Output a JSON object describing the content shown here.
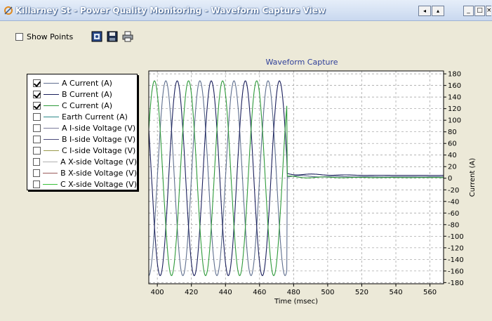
{
  "window": {
    "title": "Killarney St - Power Quality Monitoring - Waveform Capture View",
    "scroll_left": "◂",
    "scroll_right": "▴",
    "minimize": "_",
    "maximize": "□",
    "close": "×"
  },
  "toolbar": {
    "show_points_label": "Show Points",
    "show_points_checked": false,
    "icons": [
      "settings-icon",
      "save-icon",
      "print-icon"
    ]
  },
  "legend": {
    "items": [
      {
        "label": "A Current (A)",
        "checked": true,
        "color": "#5f6f8f"
      },
      {
        "label": "B Current (A)",
        "checked": true,
        "color": "#1a1f5c"
      },
      {
        "label": "C Current (A)",
        "checked": true,
        "color": "#2e9a3a"
      },
      {
        "label": "Earth Current (A)",
        "checked": false,
        "color": "#2e8a8a"
      },
      {
        "label": "A I-side Voltage (V)",
        "checked": false,
        "color": "#7a7a9a"
      },
      {
        "label": "B I-side Voltage (V)",
        "checked": false,
        "color": "#4a4a7a"
      },
      {
        "label": "C I-side Voltage (V)",
        "checked": false,
        "color": "#9a9a4a"
      },
      {
        "label": "A X-side Voltage (V)",
        "checked": false,
        "color": "#b0b0b0"
      },
      {
        "label": "B X-side Voltage (V)",
        "checked": false,
        "color": "#9a5a5a"
      },
      {
        "label": "C X-side Voltage (V)",
        "checked": false,
        "color": "#3ac03a"
      }
    ]
  },
  "chart_data": {
    "type": "line",
    "title": "Waveform Capture",
    "xlabel": "Time (msec)",
    "ylabel": "Current (A)",
    "xlim": [
      395,
      568
    ],
    "ylim": [
      -182,
      185
    ],
    "xticks": [
      400,
      420,
      440,
      460,
      480,
      500,
      520,
      540,
      560
    ],
    "yticks": [
      180,
      160,
      140,
      120,
      100,
      80,
      60,
      40,
      20,
      0,
      -20,
      -40,
      -60,
      -80,
      -100,
      -120,
      -140,
      -160,
      -180
    ],
    "grid": true,
    "fault_clear_time": 476,
    "series": [
      {
        "name": "A Current (A)",
        "color": "#5f6f8f",
        "amplitude": 168,
        "frequency_hz": 50,
        "phase_deg": 0,
        "residual": 4
      },
      {
        "name": "B Current (A)",
        "color": "#1a1f5c",
        "amplitude": 168,
        "frequency_hz": 50,
        "phase_deg": 240,
        "residual": 8
      },
      {
        "name": "C Current (A)",
        "color": "#2e9a3a",
        "amplitude": 168,
        "frequency_hz": 50,
        "phase_deg": 120,
        "residual": 2
      }
    ]
  }
}
